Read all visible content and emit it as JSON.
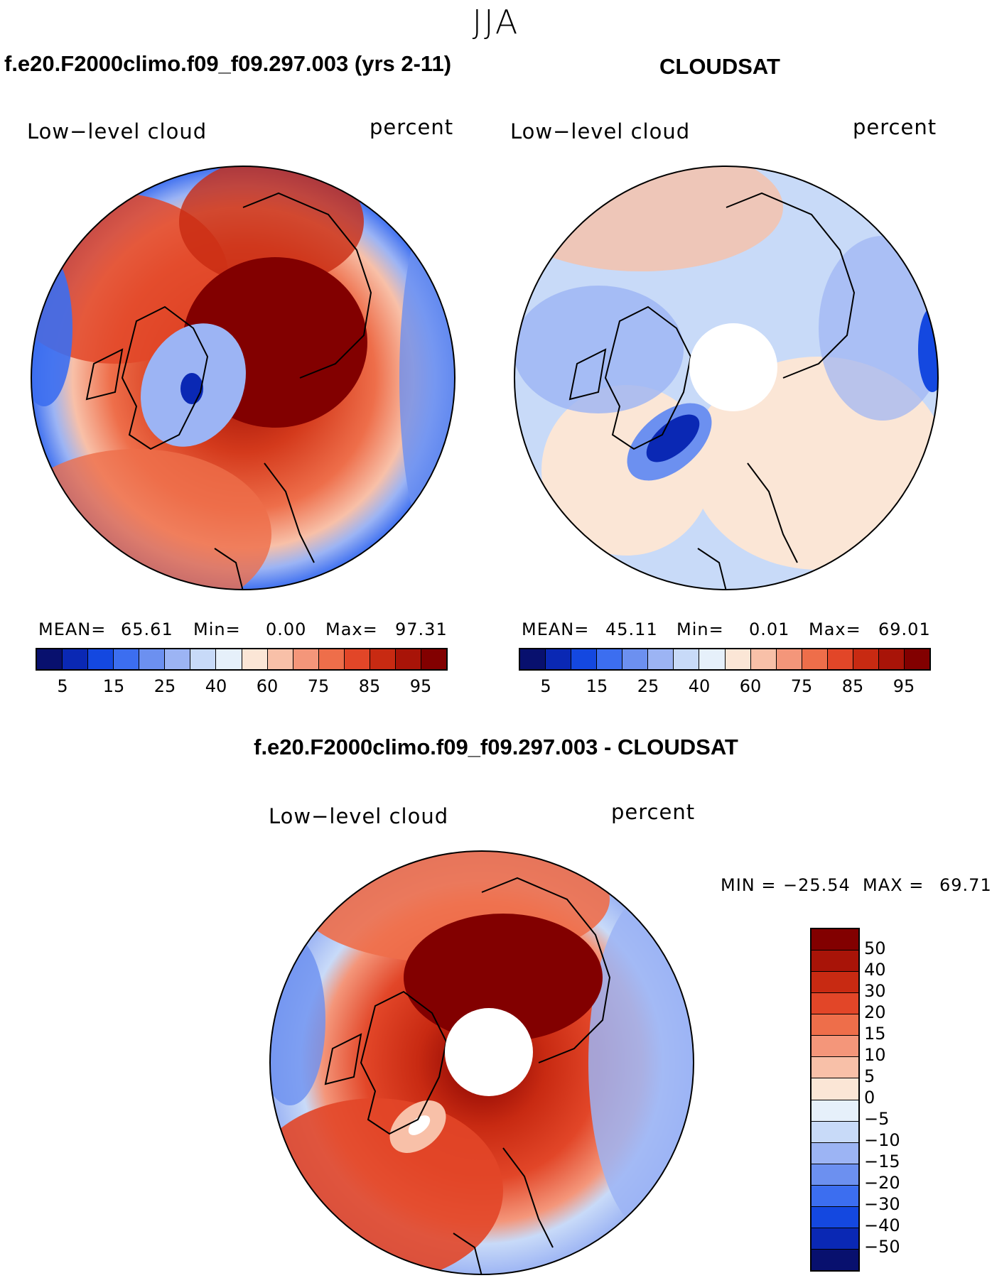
{
  "season": "JJA",
  "panels": [
    {
      "title": "f.e20.F2000climo.f09_f09.297.003 (yrs 2-11)",
      "variable_label": "Low−level cloud",
      "units_label": "percent",
      "stats": {
        "mean_label": "MEAN=",
        "mean": "65.61",
        "min_label": "Min=",
        "min": "0.00",
        "max_label": "Max=",
        "max": "97.31"
      }
    },
    {
      "title": "CLOUDSAT",
      "variable_label": "Low−level cloud",
      "units_label": "percent",
      "stats": {
        "mean_label": "MEAN=",
        "mean": "45.11",
        "min_label": "Min=",
        "min": "0.01",
        "max_label": "Max=",
        "max": "69.01"
      }
    },
    {
      "title": "f.e20.F2000climo.f09_f09.297.003 - CLOUDSAT",
      "variable_label": "Low−level cloud",
      "units_label": "percent",
      "stats": {
        "min_label": "MIN =",
        "min": "−25.54",
        "max_label": "MAX =",
        "max": "69.71"
      }
    }
  ],
  "colorbar_abs": {
    "colors": [
      "#08106e",
      "#0a28b4",
      "#1448e0",
      "#3c6ef0",
      "#6c90f0",
      "#9cb4f4",
      "#c8daf8",
      "#e6f0fa",
      "#fbe6d6",
      "#f8c0a8",
      "#f4967a",
      "#ee6e4a",
      "#e24628",
      "#c82a12",
      "#a81408",
      "#820000"
    ],
    "tick_labels": [
      "5",
      "15",
      "25",
      "40",
      "60",
      "75",
      "85",
      "95"
    ]
  },
  "colorbar_diff": {
    "colors": [
      "#820000",
      "#a81408",
      "#c82a12",
      "#e24628",
      "#ee6e4a",
      "#f4967a",
      "#f8c0a8",
      "#fbe6d6",
      "#e6f0fa",
      "#c8daf8",
      "#9cb4f4",
      "#6c90f0",
      "#3c6ef0",
      "#1448e0",
      "#0a28b4",
      "#08106e"
    ],
    "tick_labels": [
      "50",
      "40",
      "30",
      "20",
      "15",
      "10",
      "5",
      "0",
      "−5",
      "−10",
      "−15",
      "−20",
      "−30",
      "−40",
      "−50"
    ]
  }
}
